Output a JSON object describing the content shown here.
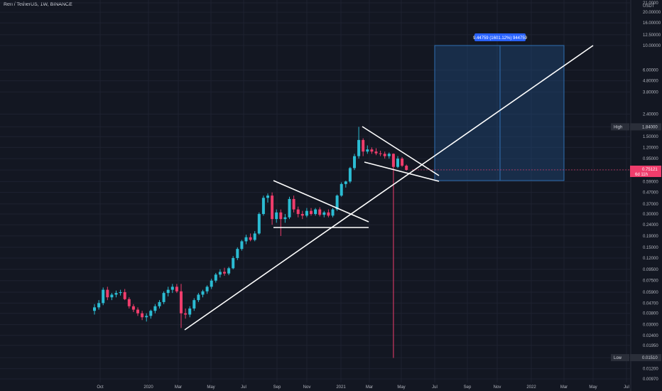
{
  "header": {
    "title": "Ren / TetherUS, 1W, BINANCE"
  },
  "colors": {
    "background": "#131722",
    "up": "#26a69a",
    "up_body": "#2bbcd3",
    "down": "#ef3d6c",
    "grid": "#1e2230",
    "drawing": "#ffffff",
    "measure_fill": "#1e4a7a",
    "measure_line": "#2f6fb3"
  },
  "chart_data": {
    "type": "candlestick",
    "y_scale": "log",
    "y_unit": "USDT",
    "y_ticks": [
      "0.00970",
      "0.01200",
      "0.01510",
      "0.01950",
      "0.02400",
      "0.03000",
      "0.03800",
      "0.04700",
      "0.05900",
      "0.07500",
      "0.09500",
      "0.12000",
      "0.15000",
      "0.19000",
      "0.24000",
      "0.30000",
      "0.37000",
      "0.47000",
      "0.59000",
      "0.75000",
      "0.95000",
      "1.20000",
      "1.50000",
      "1.84000",
      "2.40000",
      "3.80000",
      "4.80000",
      "6.00000",
      "10.00000",
      "12.50000",
      "16.00000",
      "20.00000",
      "21.0000"
    ],
    "x_ticks": [
      "Oct",
      "2020",
      "Mar",
      "May",
      "Jul",
      "Sep",
      "Nov",
      "2021",
      "Mar",
      "May",
      "Jul",
      "Sep",
      "Nov",
      "2022",
      "Mar",
      "May",
      "Jul"
    ],
    "high_label": "High",
    "high_value": "1.84000",
    "low_label": "Low",
    "low_value": "0.01510",
    "last_price": "0.75121",
    "last_price_countdown": "6d 11h",
    "measure_label": "9.44759 (1601.12%) 944759",
    "candles": [
      [
        0.04,
        0.046,
        0.037,
        0.043
      ],
      [
        0.043,
        0.05,
        0.041,
        0.047
      ],
      [
        0.047,
        0.065,
        0.045,
        0.062
      ],
      [
        0.062,
        0.066,
        0.05,
        0.053
      ],
      [
        0.053,
        0.058,
        0.05,
        0.056
      ],
      [
        0.056,
        0.061,
        0.053,
        0.058
      ],
      [
        0.058,
        0.062,
        0.055,
        0.059
      ],
      [
        0.059,
        0.063,
        0.05,
        0.051
      ],
      [
        0.051,
        0.053,
        0.042,
        0.044
      ],
      [
        0.044,
        0.046,
        0.039,
        0.041
      ],
      [
        0.041,
        0.043,
        0.036,
        0.038
      ],
      [
        0.038,
        0.04,
        0.033,
        0.035
      ],
      [
        0.035,
        0.038,
        0.032,
        0.036
      ],
      [
        0.036,
        0.041,
        0.034,
        0.04
      ],
      [
        0.04,
        0.046,
        0.038,
        0.044
      ],
      [
        0.044,
        0.05,
        0.042,
        0.048
      ],
      [
        0.048,
        0.06,
        0.046,
        0.058
      ],
      [
        0.058,
        0.066,
        0.054,
        0.062
      ],
      [
        0.062,
        0.07,
        0.058,
        0.066
      ],
      [
        0.066,
        0.07,
        0.058,
        0.06
      ],
      [
        0.06,
        0.07,
        0.028,
        0.038
      ],
      [
        0.038,
        0.042,
        0.034,
        0.037
      ],
      [
        0.037,
        0.044,
        0.035,
        0.042
      ],
      [
        0.042,
        0.052,
        0.04,
        0.05
      ],
      [
        0.05,
        0.058,
        0.048,
        0.056
      ],
      [
        0.056,
        0.062,
        0.053,
        0.06
      ],
      [
        0.06,
        0.068,
        0.057,
        0.066
      ],
      [
        0.066,
        0.078,
        0.063,
        0.075
      ],
      [
        0.075,
        0.088,
        0.072,
        0.085
      ],
      [
        0.085,
        0.095,
        0.08,
        0.09
      ],
      [
        0.09,
        0.098,
        0.083,
        0.087
      ],
      [
        0.087,
        0.1,
        0.084,
        0.097
      ],
      [
        0.097,
        0.125,
        0.095,
        0.12
      ],
      [
        0.12,
        0.15,
        0.115,
        0.145
      ],
      [
        0.145,
        0.175,
        0.14,
        0.17
      ],
      [
        0.17,
        0.195,
        0.16,
        0.185
      ],
      [
        0.185,
        0.2,
        0.17,
        0.175
      ],
      [
        0.175,
        0.21,
        0.17,
        0.2
      ],
      [
        0.2,
        0.31,
        0.195,
        0.3
      ],
      [
        0.3,
        0.44,
        0.29,
        0.42
      ],
      [
        0.42,
        0.46,
        0.38,
        0.44
      ],
      [
        0.44,
        0.47,
        0.24,
        0.27
      ],
      [
        0.27,
        0.33,
        0.25,
        0.31
      ],
      [
        0.31,
        0.33,
        0.19,
        0.27
      ],
      [
        0.27,
        0.3,
        0.25,
        0.28
      ],
      [
        0.28,
        0.43,
        0.27,
        0.41
      ],
      [
        0.41,
        0.44,
        0.31,
        0.33
      ],
      [
        0.33,
        0.35,
        0.28,
        0.3
      ],
      [
        0.3,
        0.32,
        0.27,
        0.29
      ],
      [
        0.29,
        0.34,
        0.28,
        0.32
      ],
      [
        0.32,
        0.34,
        0.29,
        0.3
      ],
      [
        0.3,
        0.34,
        0.29,
        0.33
      ],
      [
        0.33,
        0.345,
        0.285,
        0.295
      ],
      [
        0.295,
        0.32,
        0.28,
        0.31
      ],
      [
        0.31,
        0.33,
        0.28,
        0.29
      ],
      [
        0.29,
        0.34,
        0.28,
        0.33
      ],
      [
        0.33,
        0.45,
        0.32,
        0.44
      ],
      [
        0.44,
        0.58,
        0.43,
        0.56
      ],
      [
        0.56,
        0.6,
        0.52,
        0.59
      ],
      [
        0.59,
        0.8,
        0.57,
        0.78
      ],
      [
        0.78,
        1.05,
        0.75,
        1.0
      ],
      [
        1.0,
        1.84,
        0.95,
        1.4
      ],
      [
        1.4,
        1.45,
        1.0,
        1.1
      ],
      [
        1.1,
        1.25,
        1.05,
        1.15
      ],
      [
        1.15,
        1.2,
        1.05,
        1.1
      ],
      [
        1.1,
        1.18,
        1.02,
        1.06
      ],
      [
        1.06,
        1.12,
        1.0,
        1.05
      ],
      [
        1.05,
        1.1,
        0.95,
        1.0
      ],
      [
        1.0,
        1.08,
        0.95,
        1.05
      ],
      [
        1.05,
        1.06,
        0.015,
        0.8
      ],
      [
        0.8,
        1.0,
        0.78,
        0.95
      ],
      [
        0.95,
        0.98,
        0.8,
        0.82
      ],
      [
        0.82,
        0.84,
        0.74,
        0.751
      ]
    ]
  }
}
